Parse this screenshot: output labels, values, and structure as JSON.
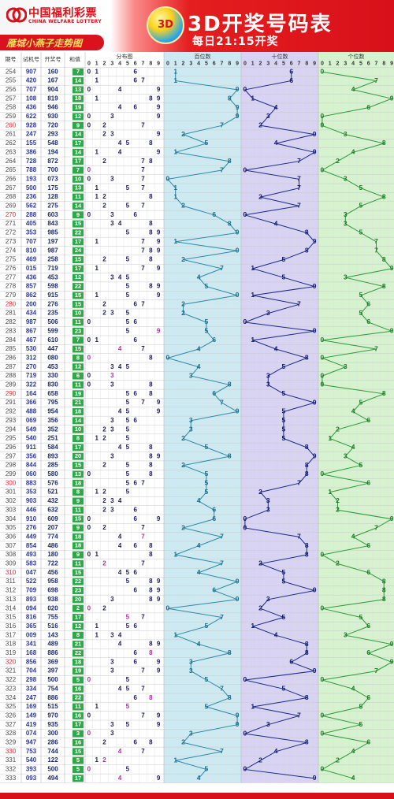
{
  "header": {
    "logo_cn": "中国福利彩票",
    "logo_en": "CHINA WELFARE LOTTERY",
    "subtitle": "雁城小燕子走势图",
    "ball_text": "3D",
    "title": "3D开奖号码表",
    "draw_time": "每日21:15开奖"
  },
  "table": {
    "columns": {
      "issue": "期号",
      "test": "试机号",
      "open": "开奖号",
      "sum": "和值",
      "dist": "分布图",
      "hundreds": "百位数",
      "tens": "十位数",
      "units": "个位数"
    },
    "digits": [
      "0",
      "1",
      "2",
      "3",
      "4",
      "5",
      "6",
      "7",
      "8",
      "9"
    ],
    "rows": [
      {
        "issue": "254",
        "test": "907",
        "open": "160",
        "sum": "7"
      },
      {
        "issue": "255",
        "test": "420",
        "open": "167",
        "sum": "14"
      },
      {
        "issue": "256",
        "test": "707",
        "open": "904",
        "sum": "13"
      },
      {
        "issue": "257",
        "test": "108",
        "open": "819",
        "sum": "18"
      },
      {
        "issue": "258",
        "test": "436",
        "open": "946",
        "sum": "19"
      },
      {
        "issue": "259",
        "test": "622",
        "open": "930",
        "sum": "12"
      },
      {
        "issue": "260",
        "test": "928",
        "open": "720",
        "sum": "9"
      },
      {
        "issue": "261",
        "test": "247",
        "open": "293",
        "sum": "14"
      },
      {
        "issue": "262",
        "test": "155",
        "open": "548",
        "sum": "17"
      },
      {
        "issue": "263",
        "test": "386",
        "open": "194",
        "sum": "14"
      },
      {
        "issue": "264",
        "test": "728",
        "open": "872",
        "sum": "17"
      },
      {
        "issue": "265",
        "test": "788",
        "open": "700",
        "sum": "7"
      },
      {
        "issue": "266",
        "test": "193",
        "open": "073",
        "sum": "10"
      },
      {
        "issue": "267",
        "test": "500",
        "open": "175",
        "sum": "13"
      },
      {
        "issue": "268",
        "test": "236",
        "open": "128",
        "sum": "11"
      },
      {
        "issue": "269",
        "test": "562",
        "open": "275",
        "sum": "14"
      },
      {
        "issue": "270",
        "test": "288",
        "open": "603",
        "sum": "9"
      },
      {
        "issue": "271",
        "test": "405",
        "open": "843",
        "sum": "15"
      },
      {
        "issue": "272",
        "test": "353",
        "open": "985",
        "sum": "22"
      },
      {
        "issue": "273",
        "test": "707",
        "open": "197",
        "sum": "17"
      },
      {
        "issue": "274",
        "test": "810",
        "open": "987",
        "sum": "24"
      },
      {
        "issue": "275",
        "test": "469",
        "open": "258",
        "sum": "15"
      },
      {
        "issue": "276",
        "test": "015",
        "open": "719",
        "sum": "17"
      },
      {
        "issue": "277",
        "test": "436",
        "open": "453",
        "sum": "12"
      },
      {
        "issue": "278",
        "test": "857",
        "open": "598",
        "sum": "22"
      },
      {
        "issue": "279",
        "test": "862",
        "open": "915",
        "sum": "15"
      },
      {
        "issue": "280",
        "test": "200",
        "open": "276",
        "sum": "15"
      },
      {
        "issue": "281",
        "test": "434",
        "open": "235",
        "sum": "10"
      },
      {
        "issue": "282",
        "test": "987",
        "open": "506",
        "sum": "11"
      },
      {
        "issue": "283",
        "test": "867",
        "open": "599",
        "sum": "23"
      },
      {
        "issue": "284",
        "test": "467",
        "open": "610",
        "sum": "7"
      },
      {
        "issue": "285",
        "test": "530",
        "open": "447",
        "sum": "15"
      },
      {
        "issue": "286",
        "test": "312",
        "open": "080",
        "sum": "8"
      },
      {
        "issue": "287",
        "test": "270",
        "open": "453",
        "sum": "12"
      },
      {
        "issue": "288",
        "test": "719",
        "open": "330",
        "sum": "6"
      },
      {
        "issue": "289",
        "test": "322",
        "open": "830",
        "sum": "11"
      },
      {
        "issue": "290",
        "test": "164",
        "open": "658",
        "sum": "19"
      },
      {
        "issue": "291",
        "test": "366",
        "open": "795",
        "sum": "21"
      },
      {
        "issue": "292",
        "test": "488",
        "open": "954",
        "sum": "18"
      },
      {
        "issue": "293",
        "test": "069",
        "open": "356",
        "sum": "14"
      },
      {
        "issue": "294",
        "test": "549",
        "open": "352",
        "sum": "10"
      },
      {
        "issue": "295",
        "test": "540",
        "open": "251",
        "sum": "8"
      },
      {
        "issue": "296",
        "test": "911",
        "open": "584",
        "sum": "17"
      },
      {
        "issue": "297",
        "test": "356",
        "open": "893",
        "sum": "20"
      },
      {
        "issue": "298",
        "test": "844",
        "open": "285",
        "sum": "15"
      },
      {
        "issue": "299",
        "test": "060",
        "open": "580",
        "sum": "13"
      },
      {
        "issue": "300",
        "test": "883",
        "open": "576",
        "sum": "18"
      },
      {
        "issue": "301",
        "test": "353",
        "open": "521",
        "sum": "8"
      },
      {
        "issue": "302",
        "test": "903",
        "open": "432",
        "sum": "9"
      },
      {
        "issue": "303",
        "test": "446",
        "open": "632",
        "sum": "11"
      },
      {
        "issue": "304",
        "test": "910",
        "open": "609",
        "sum": "15"
      },
      {
        "issue": "305",
        "test": "276",
        "open": "207",
        "sum": "9"
      },
      {
        "issue": "306",
        "test": "449",
        "open": "774",
        "sum": "18"
      },
      {
        "issue": "307",
        "test": "854",
        "open": "486",
        "sum": "18"
      },
      {
        "issue": "308",
        "test": "493",
        "open": "180",
        "sum": "9"
      },
      {
        "issue": "309",
        "test": "583",
        "open": "722",
        "sum": "11"
      },
      {
        "issue": "310",
        "test": "047",
        "open": "456",
        "sum": "15"
      },
      {
        "issue": "311",
        "test": "522",
        "open": "958",
        "sum": "22"
      },
      {
        "issue": "312",
        "test": "709",
        "open": "698",
        "sum": "23"
      },
      {
        "issue": "313",
        "test": "893",
        "open": "938",
        "sum": "20"
      },
      {
        "issue": "314",
        "test": "094",
        "open": "020",
        "sum": "2"
      },
      {
        "issue": "315",
        "test": "816",
        "open": "755",
        "sum": "17"
      },
      {
        "issue": "316",
        "test": "365",
        "open": "516",
        "sum": "12"
      },
      {
        "issue": "317",
        "test": "009",
        "open": "143",
        "sum": "8"
      },
      {
        "issue": "318",
        "test": "341",
        "open": "489",
        "sum": "21"
      },
      {
        "issue": "319",
        "test": "168",
        "open": "886",
        "sum": "22"
      },
      {
        "issue": "320",
        "test": "856",
        "open": "369",
        "sum": "18"
      },
      {
        "issue": "321",
        "test": "704",
        "open": "397",
        "sum": "19"
      },
      {
        "issue": "322",
        "test": "298",
        "open": "500",
        "sum": "5"
      },
      {
        "issue": "323",
        "test": "334",
        "open": "754",
        "sum": "16"
      },
      {
        "issue": "324",
        "test": "247",
        "open": "886",
        "sum": "22"
      },
      {
        "issue": "325",
        "test": "169",
        "open": "515",
        "sum": "11"
      },
      {
        "issue": "326",
        "test": "149",
        "open": "970",
        "sum": "16"
      },
      {
        "issue": "327",
        "test": "419",
        "open": "935",
        "sum": "17"
      },
      {
        "issue": "328",
        "test": "074",
        "open": "300",
        "sum": "3"
      },
      {
        "issue": "329",
        "test": "947",
        "open": "286",
        "sum": "16"
      },
      {
        "issue": "330",
        "test": "753",
        "open": "744",
        "sum": "15"
      },
      {
        "issue": "331",
        "test": "540",
        "open": "122",
        "sum": "5"
      },
      {
        "issue": "332",
        "test": "393",
        "open": "500",
        "sum": "5"
      },
      {
        "issue": "333",
        "test": "093",
        "open": "494",
        "sum": "17"
      }
    ]
  },
  "colors": {
    "brand_red": "#d8101a",
    "issue_text": "#4a4a4a",
    "red_issue": "#e0303a",
    "test_text": "#2d3a8c",
    "open_text": "#1a2a6e",
    "sum_bg": "#2fa84a",
    "dist_text": "#1a1a5a",
    "hundreds_bg": "#cdeaf2",
    "hundreds_line": "#2c8aa6",
    "tens_bg": "#d8d2f3",
    "tens_line": "#1a2a8a",
    "units_bg": "#d6f2cf",
    "units_line": "#2d9a3a"
  }
}
